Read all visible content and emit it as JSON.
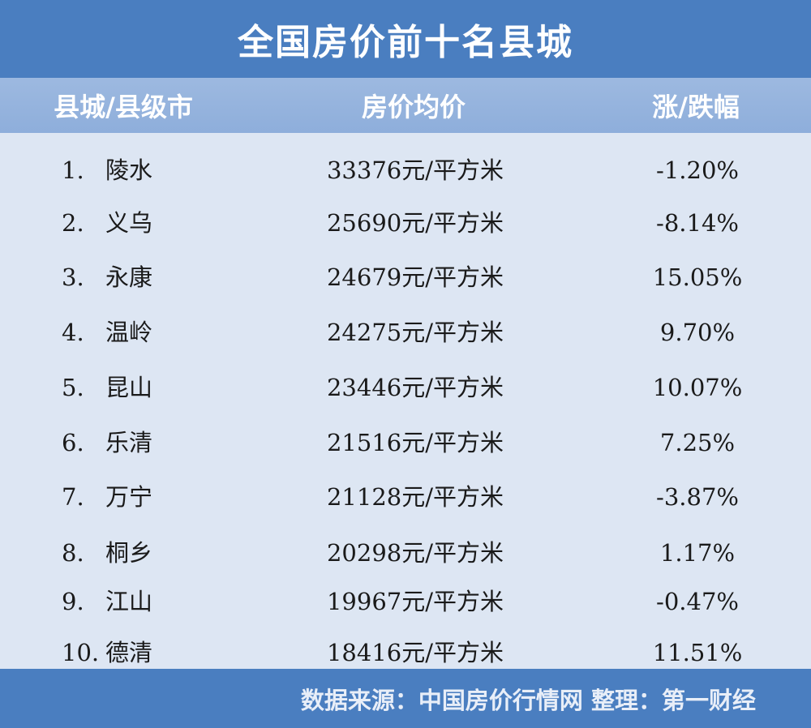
{
  "chart_data": {
    "type": "table",
    "title": "全国房价前十名县城",
    "columns": [
      "县城/县级市",
      "房价均价",
      "涨/跌幅"
    ],
    "rows": [
      {
        "rank": "1.",
        "name": "陵水",
        "price": "33376元/平方米",
        "change": "-1.20%"
      },
      {
        "rank": "2.",
        "name": "义乌",
        "price": "25690元/平方米",
        "change": "-8.14%"
      },
      {
        "rank": "3.",
        "name": "永康",
        "price": "24679元/平方米",
        "change": "15.05%"
      },
      {
        "rank": "4.",
        "name": "温岭",
        "price": "24275元/平方米",
        "change": "9.70%"
      },
      {
        "rank": "5.",
        "name": "昆山",
        "price": "23446元/平方米",
        "change": "10.07%"
      },
      {
        "rank": "6.",
        "name": "乐清",
        "price": "21516元/平方米",
        "change": "7.25%"
      },
      {
        "rank": "7.",
        "name": "万宁",
        "price": "21128元/平方米",
        "change": "-3.87%"
      },
      {
        "rank": "8.",
        "name": "桐乡",
        "price": "20298元/平方米",
        "change": "1.17%"
      },
      {
        "rank": "9.",
        "name": "江山",
        "price": "19967元/平方米",
        "change": "-0.47%"
      },
      {
        "rank": "10.",
        "name": "德清",
        "price": "18416元/平方米",
        "change": "11.51%"
      }
    ],
    "footer": "数据来源：中国房价行情网  整理：第一财经"
  },
  "colors": {
    "banner": "#4a7ec0",
    "header": "#8eaedb",
    "body": "#dde6f3"
  }
}
